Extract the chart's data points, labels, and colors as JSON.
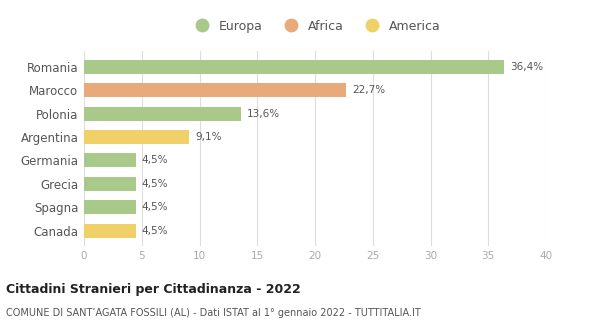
{
  "countries": [
    "Romania",
    "Marocco",
    "Polonia",
    "Argentina",
    "Germania",
    "Grecia",
    "Spagna",
    "Canada"
  ],
  "values": [
    36.4,
    22.7,
    13.6,
    9.1,
    4.5,
    4.5,
    4.5,
    4.5
  ],
  "labels": [
    "36,4%",
    "22,7%",
    "13,6%",
    "9,1%",
    "4,5%",
    "4,5%",
    "4,5%",
    "4,5%"
  ],
  "colors": [
    "#a8c98a",
    "#e8aa7a",
    "#a8c98a",
    "#f0d068",
    "#a8c98a",
    "#a8c98a",
    "#a8c98a",
    "#f0d068"
  ],
  "legend_labels": [
    "Europa",
    "Africa",
    "America"
  ],
  "legend_colors": [
    "#a8c98a",
    "#e8aa7a",
    "#f0d068"
  ],
  "title": "Cittadini Stranieri per Cittadinanza - 2022",
  "subtitle": "COMUNE DI SANT’AGATA FOSSILI (AL) - Dati ISTAT al 1° gennaio 2022 - TUTTITALIA.IT",
  "xlim": [
    0,
    40
  ],
  "xticks": [
    0,
    5,
    10,
    15,
    20,
    25,
    30,
    35,
    40
  ],
  "bg_color": "#ffffff",
  "grid_color": "#dddddd",
  "bar_height": 0.6,
  "label_color": "#555555",
  "ytick_color": "#555555",
  "xtick_color": "#aaaaaa"
}
